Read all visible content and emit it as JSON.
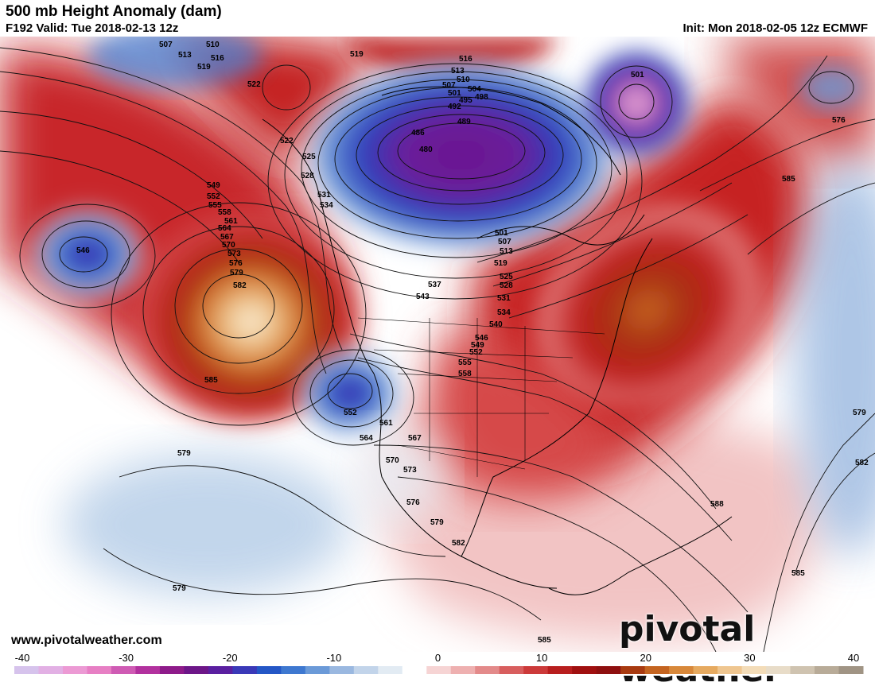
{
  "header": {
    "title": "500 mb Height Anomaly (dam)",
    "valid": "F192 Valid: Tue 2018-02-13 12z",
    "init": "Init: Mon 2018-02-05 12z ECMWF"
  },
  "footer": {
    "website": "www.pivotalweather.com",
    "brand": "pivotal weather"
  },
  "colorbar": {
    "ticks": [
      "-40",
      "-30",
      "-20",
      "-10",
      "0",
      "10",
      "20",
      "30",
      "40"
    ],
    "range": [
      -40,
      40
    ],
    "colors": [
      "#d6c3ec",
      "#e2b0e4",
      "#ec9ad4",
      "#e77fc4",
      "#cf5bb4",
      "#b2319e",
      "#8e1b8a",
      "#6d1688",
      "#5a1fa0",
      "#3a39b8",
      "#2457c6",
      "#3e78d0",
      "#6b9ad8",
      "#9ab8e0",
      "#c2d4ea",
      "#e2ebf3",
      "#ffffff",
      "#f6d4d4",
      "#eeb0b0",
      "#e38a8a",
      "#d85e5e",
      "#cc3a3a",
      "#b81e1e",
      "#a01010",
      "#8e0f0f",
      "#a83a10",
      "#c46420",
      "#d8883a",
      "#e6aa60",
      "#efc690",
      "#f3dcb8",
      "#e8dcc8",
      "#cfc3b0",
      "#b8ab98",
      "#a09484"
    ]
  },
  "contour_labels": [
    {
      "t": "507"
    },
    {
      "t": "510"
    },
    {
      "t": "513"
    },
    {
      "t": "516"
    },
    {
      "t": "519"
    },
    {
      "t": "519"
    },
    {
      "t": "522"
    },
    {
      "t": "522"
    },
    {
      "t": "525"
    },
    {
      "t": "528"
    },
    {
      "t": "531"
    },
    {
      "t": "534"
    },
    {
      "t": "513"
    },
    {
      "t": "516"
    },
    {
      "t": "510"
    },
    {
      "t": "507"
    },
    {
      "t": "504"
    },
    {
      "t": "501"
    },
    {
      "t": "498"
    },
    {
      "t": "495"
    },
    {
      "t": "492"
    },
    {
      "t": "489"
    },
    {
      "t": "486"
    },
    {
      "t": "480"
    },
    {
      "t": "501"
    },
    {
      "t": "549"
    },
    {
      "t": "552"
    },
    {
      "t": "555"
    },
    {
      "t": "558"
    },
    {
      "t": "561"
    },
    {
      "t": "564"
    },
    {
      "t": "567"
    },
    {
      "t": "570"
    },
    {
      "t": "573"
    },
    {
      "t": "576"
    },
    {
      "t": "579"
    },
    {
      "t": "582"
    },
    {
      "t": "546"
    },
    {
      "t": "585"
    },
    {
      "t": "585"
    },
    {
      "t": "576"
    },
    {
      "t": "501"
    },
    {
      "t": "507"
    },
    {
      "t": "513"
    },
    {
      "t": "519"
    },
    {
      "t": "525"
    },
    {
      "t": "528"
    },
    {
      "t": "531"
    },
    {
      "t": "534"
    },
    {
      "t": "537"
    },
    {
      "t": "543"
    },
    {
      "t": "540"
    },
    {
      "t": "546"
    },
    {
      "t": "549"
    },
    {
      "t": "552"
    },
    {
      "t": "555"
    },
    {
      "t": "558"
    },
    {
      "t": "552"
    },
    {
      "t": "561"
    },
    {
      "t": "564"
    },
    {
      "t": "567"
    },
    {
      "t": "570"
    },
    {
      "t": "573"
    },
    {
      "t": "576"
    },
    {
      "t": "579"
    },
    {
      "t": "582"
    },
    {
      "t": "579"
    },
    {
      "t": "579"
    },
    {
      "t": "579"
    },
    {
      "t": "582"
    },
    {
      "t": "588"
    },
    {
      "t": "585"
    },
    {
      "t": "585"
    }
  ]
}
